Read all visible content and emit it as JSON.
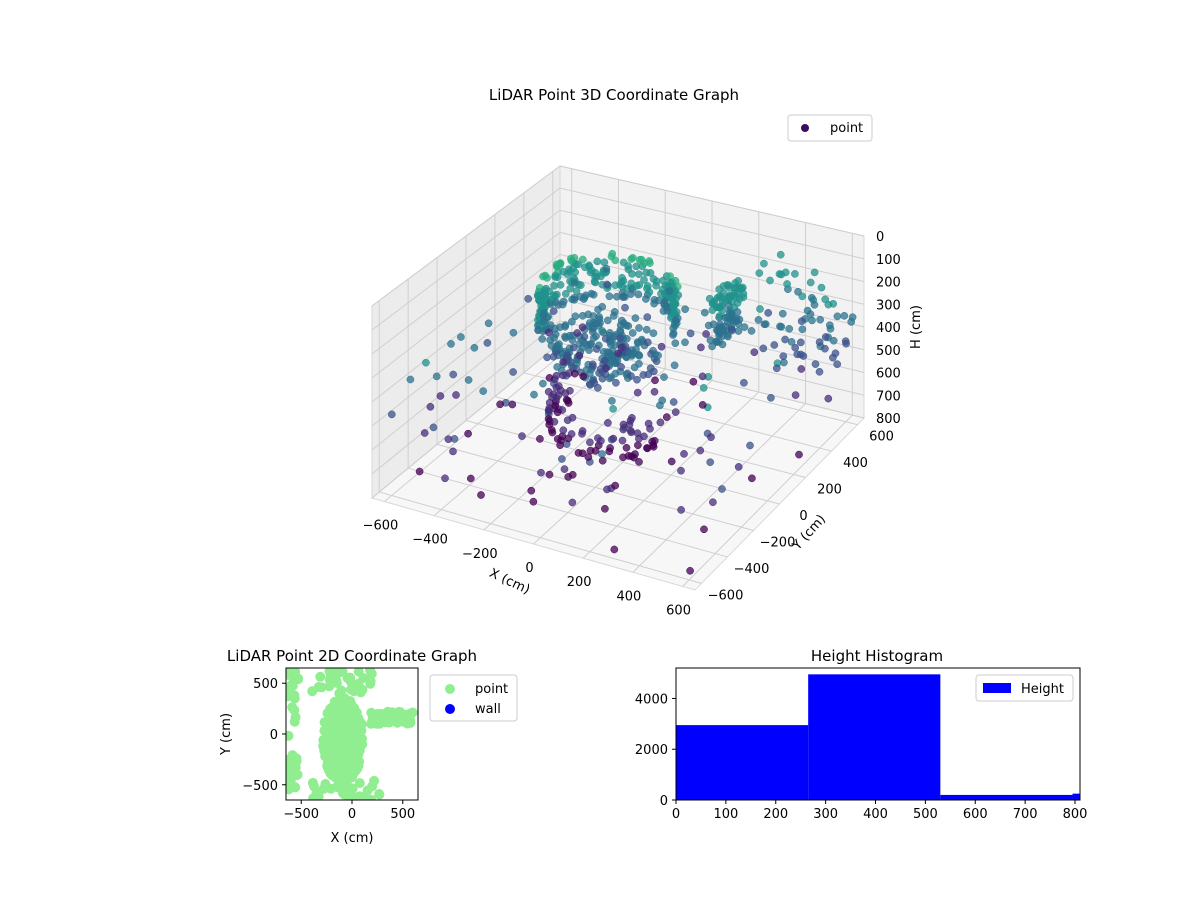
{
  "chart_data": [
    {
      "type": "scatter",
      "title": "LiDAR Point 3D Coordinate Graph",
      "xlabel": "X (cm)",
      "ylabel": "Y (cm)",
      "zlabel": "H (cm)",
      "xlim": [
        -650,
        650
      ],
      "ylim": [
        -650,
        650
      ],
      "zlim": [
        0,
        800
      ],
      "z_inverted": true,
      "x_ticks": [
        "−600",
        "−400",
        "−200",
        "0",
        "200",
        "400",
        "600"
      ],
      "y_ticks": [
        "−600",
        "−400",
        "−200",
        "0",
        "200",
        "400",
        "600"
      ],
      "z_ticks": [
        "0",
        "100",
        "200",
        "300",
        "400",
        "500",
        "600",
        "700",
        "800"
      ],
      "legend": {
        "placement": "upper-right",
        "entries": [
          {
            "label": "point",
            "color": "#3b0f5e"
          }
        ]
      },
      "colormap": "viridis",
      "grid": true
    },
    {
      "type": "scatter",
      "title": "LiDAR Point 2D Coordinate Graph",
      "xlabel": "X (cm)",
      "ylabel": "Y (cm)",
      "xlim": [
        -650,
        650
      ],
      "ylim": [
        -650,
        650
      ],
      "x_ticks": [
        "−500",
        "0",
        "500"
      ],
      "y_ticks": [
        "500",
        "0",
        "−500"
      ],
      "legend": {
        "placement": "outside-right",
        "entries": [
          {
            "label": "point",
            "color": "#90ee90"
          },
          {
            "label": "wall",
            "color": "#0000ff"
          }
        ]
      },
      "series": [
        {
          "name": "point",
          "color": "#90ee90"
        },
        {
          "name": "wall",
          "color": "#0000ff"
        }
      ]
    },
    {
      "type": "bar",
      "title": "Height Histogram",
      "xlim": [
        0,
        810
      ],
      "ylim": [
        0,
        5200
      ],
      "x_ticks": [
        "0",
        "100",
        "200",
        "300",
        "400",
        "500",
        "600",
        "700",
        "800"
      ],
      "y_ticks": [
        "0",
        "2000",
        "4000"
      ],
      "bins": [
        [
          0,
          265,
          2950
        ],
        [
          265,
          530,
          4950
        ],
        [
          530,
          795,
          200
        ],
        [
          795,
          810,
          250
        ]
      ],
      "series": [
        {
          "name": "Height",
          "color": "#0000ff"
        }
      ],
      "legend": {
        "placement": "upper-right",
        "entries": [
          {
            "label": "Height",
            "color": "#0000ff"
          }
        ]
      }
    }
  ]
}
